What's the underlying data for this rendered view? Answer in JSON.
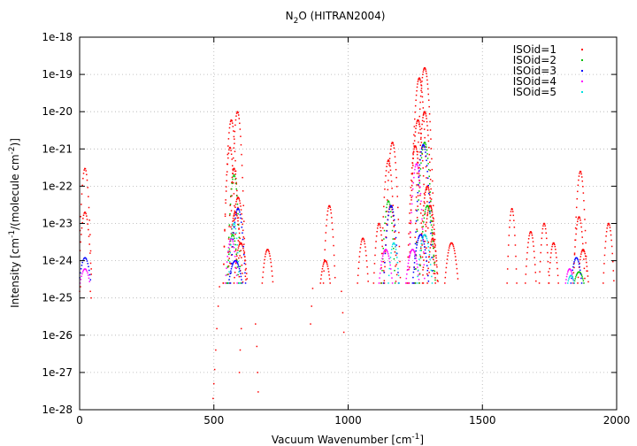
{
  "chart_data": {
    "type": "scatter",
    "title": "N₂O (HITRAN2004)",
    "title_parts": [
      "N",
      "2",
      "O (HITRAN2004)"
    ],
    "xlabel": "Vacuum Wavenumber [cm⁻¹]",
    "xlabel_parts": [
      "Vacuum Wavenumber [cm",
      "-1",
      "]"
    ],
    "ylabel": "Intensity [cm⁻¹/(molecule cm⁻²)]",
    "ylabel_parts": [
      "Intensity [cm",
      "-1",
      "/(molecule cm",
      "-2",
      ")]"
    ],
    "xlim": [
      0,
      2000
    ],
    "ylim": [
      1e-28,
      1e-18
    ],
    "yscale": "log",
    "xticks": [
      0,
      500,
      1000,
      1500,
      2000
    ],
    "xtick_labels": [
      "0",
      "500",
      "1000",
      "1500",
      "2000"
    ],
    "yticks": [
      1e-18,
      1e-19,
      1e-20,
      1e-21,
      1e-22,
      1e-23,
      1e-24,
      1e-25,
      1e-26,
      1e-27,
      1e-28
    ],
    "ytick_labels": [
      "1e-18",
      "1e-19",
      "1e-20",
      "1e-21",
      "1e-22",
      "1e-23",
      "1e-24",
      "1e-25",
      "1e-26",
      "1e-27",
      "1e-28"
    ],
    "grid": true,
    "legend_position": "top-right",
    "intensity_cutoff": 2.5e-25,
    "series": [
      {
        "name": "ISOid=1",
        "color": "#ff0000",
        "bands": [
          {
            "center": 20,
            "half_width": 25,
            "peak": 3e-22,
            "step": 2.2
          },
          {
            "center": 20,
            "half_width": 25,
            "peak": 2e-23,
            "step": 2.2
          },
          {
            "center": 588,
            "half_width": 30,
            "peak": 1e-20,
            "step": 1.8
          },
          {
            "center": 565,
            "half_width": 30,
            "peak": 6e-21,
            "step": 1.8
          },
          {
            "center": 560,
            "half_width": 25,
            "peak": 1.1e-21,
            "step": 1.8
          },
          {
            "center": 575,
            "half_width": 25,
            "peak": 3e-22,
            "step": 1.8
          },
          {
            "center": 590,
            "half_width": 30,
            "peak": 5e-23,
            "step": 1.8
          },
          {
            "center": 580,
            "half_width": 28,
            "peak": 2e-23,
            "step": 1.8
          },
          {
            "center": 600,
            "half_width": 25,
            "peak": 3e-24,
            "step": 1.8
          },
          {
            "center": 700,
            "half_width": 20,
            "peak": 2e-24,
            "step": 1.8
          },
          {
            "center": 930,
            "half_width": 22,
            "peak": 3e-23,
            "step": 1.8
          },
          {
            "center": 915,
            "half_width": 18,
            "peak": 1e-24,
            "step": 1.8
          },
          {
            "center": 1055,
            "half_width": 20,
            "peak": 4e-24,
            "step": 1.8
          },
          {
            "center": 1115,
            "half_width": 20,
            "peak": 1e-23,
            "step": 1.8
          },
          {
            "center": 1165,
            "half_width": 30,
            "peak": 1.5e-21,
            "step": 1.8
          },
          {
            "center": 1150,
            "half_width": 28,
            "peak": 5e-22,
            "step": 1.8
          },
          {
            "center": 1158,
            "half_width": 25,
            "peak": 3e-23,
            "step": 1.8
          },
          {
            "center": 1285,
            "half_width": 40,
            "peak": 1.5e-19,
            "step": 1.5
          },
          {
            "center": 1265,
            "half_width": 38,
            "peak": 8e-20,
            "step": 1.5
          },
          {
            "center": 1285,
            "half_width": 35,
            "peak": 1e-20,
            "step": 1.5
          },
          {
            "center": 1260,
            "half_width": 35,
            "peak": 6e-21,
            "step": 1.5
          },
          {
            "center": 1250,
            "half_width": 30,
            "peak": 1.2e-21,
            "step": 1.5
          },
          {
            "center": 1295,
            "half_width": 30,
            "peak": 1e-22,
            "step": 1.5
          },
          {
            "center": 1305,
            "half_width": 28,
            "peak": 3e-23,
            "step": 1.5
          },
          {
            "center": 1315,
            "half_width": 20,
            "peak": 4e-24,
            "step": 1.8
          },
          {
            "center": 1385,
            "half_width": 25,
            "peak": 3e-24,
            "step": 1.8
          },
          {
            "center": 1610,
            "half_width": 18,
            "peak": 2.5e-23,
            "step": 1.8
          },
          {
            "center": 1680,
            "half_width": 20,
            "peak": 6e-24,
            "step": 1.8
          },
          {
            "center": 1730,
            "half_width": 18,
            "peak": 1e-23,
            "step": 1.8
          },
          {
            "center": 1765,
            "half_width": 18,
            "peak": 3e-24,
            "step": 1.8
          },
          {
            "center": 1865,
            "half_width": 25,
            "peak": 2.5e-22,
            "step": 1.8
          },
          {
            "center": 1860,
            "half_width": 22,
            "peak": 1.5e-23,
            "step": 1.8
          },
          {
            "center": 1875,
            "half_width": 20,
            "peak": 2e-24,
            "step": 1.8
          },
          {
            "center": 1970,
            "half_width": 20,
            "peak": 1e-23,
            "step": 1.8
          }
        ],
        "extra_points": [
          {
            "x": 497,
            "y": 2e-28
          },
          {
            "x": 500,
            "y": 5e-28
          },
          {
            "x": 503,
            "y": 1.2e-27
          },
          {
            "x": 507,
            "y": 4e-27
          },
          {
            "x": 511,
            "y": 1.5e-26
          },
          {
            "x": 516,
            "y": 6e-26
          },
          {
            "x": 521,
            "y": 2e-25
          },
          {
            "x": 595,
            "y": 1e-27
          },
          {
            "x": 598,
            "y": 4e-27
          },
          {
            "x": 602,
            "y": 1.5e-26
          },
          {
            "x": 655,
            "y": 2e-26
          },
          {
            "x": 660,
            "y": 5e-27
          },
          {
            "x": 663,
            "y": 1e-27
          },
          {
            "x": 665,
            "y": 3e-28
          },
          {
            "x": 860,
            "y": 2e-26
          },
          {
            "x": 864,
            "y": 6e-26
          },
          {
            "x": 868,
            "y": 1.8e-25
          },
          {
            "x": 975,
            "y": 1.5e-25
          },
          {
            "x": 980,
            "y": 4e-26
          },
          {
            "x": 984,
            "y": 1.2e-26
          },
          {
            "x": 0,
            "y": 1.5e-25
          },
          {
            "x": 3,
            "y": 2e-25
          },
          {
            "x": 40,
            "y": 1.5e-25
          },
          {
            "x": 43,
            "y": 1e-25
          }
        ]
      },
      {
        "name": "ISOid=2",
        "color": "#00c000",
        "bands": [
          {
            "center": 575,
            "half_width": 25,
            "peak": 2e-22,
            "step": 2.0
          },
          {
            "center": 570,
            "half_width": 22,
            "peak": 5e-24,
            "step": 2.0
          },
          {
            "center": 1150,
            "half_width": 25,
            "peak": 4e-23,
            "step": 2.0
          },
          {
            "center": 1285,
            "half_width": 35,
            "peak": 1.5e-21,
            "step": 1.8
          },
          {
            "center": 1295,
            "half_width": 30,
            "peak": 3e-23,
            "step": 1.8
          },
          {
            "center": 1860,
            "half_width": 18,
            "peak": 5e-25,
            "step": 2.0
          }
        ],
        "extra_points": []
      },
      {
        "name": "ISOid=3",
        "color": "#0000ff",
        "bands": [
          {
            "center": 20,
            "half_width": 22,
            "peak": 1.2e-24,
            "step": 2.5
          },
          {
            "center": 590,
            "half_width": 28,
            "peak": 2.5e-23,
            "step": 2.0
          },
          {
            "center": 580,
            "half_width": 25,
            "peak": 1e-24,
            "step": 2.0
          },
          {
            "center": 1160,
            "half_width": 28,
            "peak": 3e-23,
            "step": 2.0
          },
          {
            "center": 1280,
            "half_width": 35,
            "peak": 1.3e-21,
            "step": 1.8
          },
          {
            "center": 1270,
            "half_width": 30,
            "peak": 5e-24,
            "step": 1.8
          },
          {
            "center": 1850,
            "half_width": 20,
            "peak": 1.2e-24,
            "step": 2.0
          }
        ],
        "extra_points": []
      },
      {
        "name": "ISOid=4",
        "color": "#ff00ff",
        "bands": [
          {
            "center": 20,
            "half_width": 18,
            "peak": 6e-25,
            "step": 2.5
          },
          {
            "center": 565,
            "half_width": 22,
            "peak": 4e-24,
            "step": 2.0
          },
          {
            "center": 1140,
            "half_width": 25,
            "peak": 2e-24,
            "step": 2.0
          },
          {
            "center": 1255,
            "half_width": 30,
            "peak": 4e-22,
            "step": 1.8
          },
          {
            "center": 1240,
            "half_width": 25,
            "peak": 2e-24,
            "step": 1.8
          },
          {
            "center": 1825,
            "half_width": 15,
            "peak": 6e-25,
            "step": 2.0
          }
        ],
        "extra_points": []
      },
      {
        "name": "ISOid=5",
        "color": "#00e0e0",
        "bands": [
          {
            "center": 575,
            "half_width": 20,
            "peak": 1e-23,
            "step": 2.0
          },
          {
            "center": 1170,
            "half_width": 20,
            "peak": 3e-24,
            "step": 2.0
          },
          {
            "center": 1285,
            "half_width": 28,
            "peak": 5e-24,
            "step": 2.0
          },
          {
            "center": 1830,
            "half_width": 12,
            "peak": 4e-25,
            "step": 2.0
          }
        ],
        "extra_points": []
      }
    ]
  }
}
